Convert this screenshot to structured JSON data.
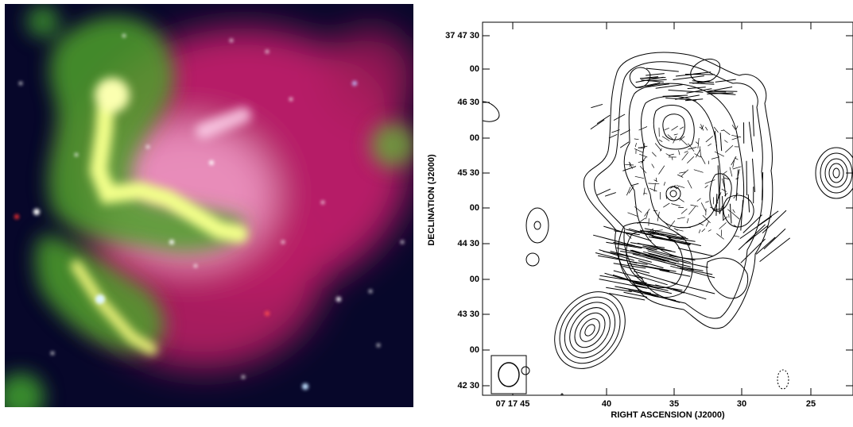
{
  "left_image": {
    "description_icon": "composite-optical-xray-radio-image-icon"
  },
  "radio_map": {
    "xlabel": "RIGHT ASCENSION (J2000)",
    "ylabel": "DECLINATION (J2000)",
    "x_ticks": [
      "07 17 45",
      "40",
      "35",
      "30",
      "25"
    ],
    "y_ticks": [
      "37 47 30",
      "00",
      "46 30",
      "00",
      "45 30",
      "00",
      "44 30",
      "00",
      "43 30",
      "00",
      "42 30"
    ],
    "line_color": "#000000"
  }
}
